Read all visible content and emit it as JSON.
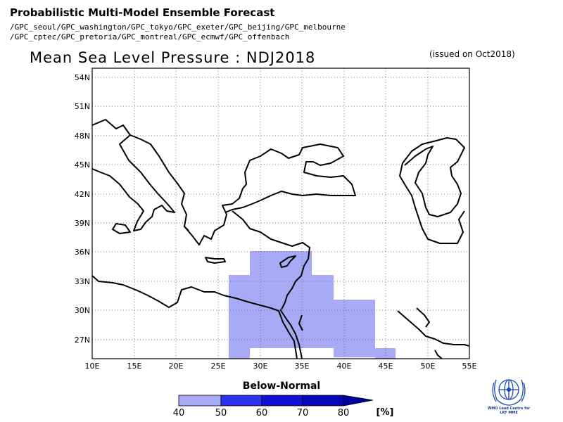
{
  "header": {
    "title": "Probabilistic Multi-Model Ensemble Forecast",
    "centres_line1": "/GPC_seoul/GPC_washington/GPC_tokyo/GPC_exeter/GPC_beijing/GPC_melbourne",
    "centres_line2": "/GPC_cptec/GPC_pretoria/GPC_montreal/GPC_ecmwf/GPC_offenbach"
  },
  "map": {
    "title": "Mean Sea Level Pressure : NDJ2018",
    "issued": "(issued on Oct2018)",
    "lon_range": [
      10,
      55
    ],
    "lat_range": [
      25,
      55
    ],
    "lon_ticks": [
      "10E",
      "15E",
      "20E",
      "25E",
      "30E",
      "35E",
      "40E",
      "45E",
      "50E",
      "55E"
    ],
    "lat_ticks": [
      "27N",
      "30N",
      "33N",
      "36N",
      "39N",
      "42N",
      "45N",
      "48N",
      "51N",
      "54N"
    ],
    "grid": true,
    "shading_color": "#a8aaf5",
    "below_normal_region": "40-50% probability cells over the eastern Mediterranean, Levant and northern Arabia"
  },
  "legend": {
    "title": "Below-Normal",
    "labels": [
      "40",
      "50",
      "60",
      "70",
      "80",
      "[%]"
    ],
    "colors": [
      "#a8aaf5",
      "#2a34ee",
      "#1010d8",
      "#0606bc",
      "#0000a0"
    ]
  },
  "logo": {
    "icon": "wmo-logo-icon",
    "caption_line1": "WMO Lead Centre for",
    "caption_line2": "LRF MME"
  }
}
